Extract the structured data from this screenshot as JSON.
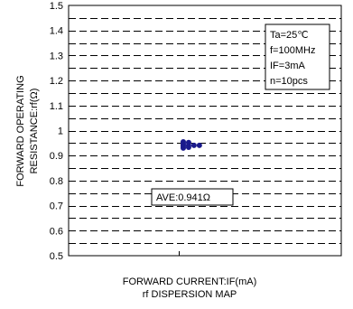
{
  "chart_data": {
    "type": "scatter",
    "title": "rf DISPERSION MAP",
    "xlabel": "FORWARD CURRENT:IF(mA)",
    "ylabel_line1": "FORWARD OPERATING",
    "ylabel_line2": "RESISTANCE:rf(Ω)",
    "ylim": [
      0.5,
      1.5
    ],
    "yticks": [
      "1.5",
      "1.4",
      "1.3",
      "1.2",
      "1.1",
      "1",
      "0.9",
      "0.8",
      "0.7",
      "0.6",
      "0.5"
    ],
    "grid": true,
    "conditions": [
      "Ta=25℃",
      "f=100MHz",
      "IF=3mA",
      "n=10pcs"
    ],
    "average_label": "AVE:0.941Ω",
    "points": [
      {
        "x": 0,
        "y": 0.955
      },
      {
        "x": 0,
        "y": 0.948
      },
      {
        "x": 0,
        "y": 0.942
      },
      {
        "x": 0,
        "y": 0.936
      },
      {
        "x": 0,
        "y": 0.93
      },
      {
        "x": 0.12,
        "y": 0.952
      },
      {
        "x": 0.12,
        "y": 0.941
      },
      {
        "x": 0.12,
        "y": 0.933
      },
      {
        "x": 0.24,
        "y": 0.941
      },
      {
        "x": 0.36,
        "y": 0.941
      }
    ]
  }
}
